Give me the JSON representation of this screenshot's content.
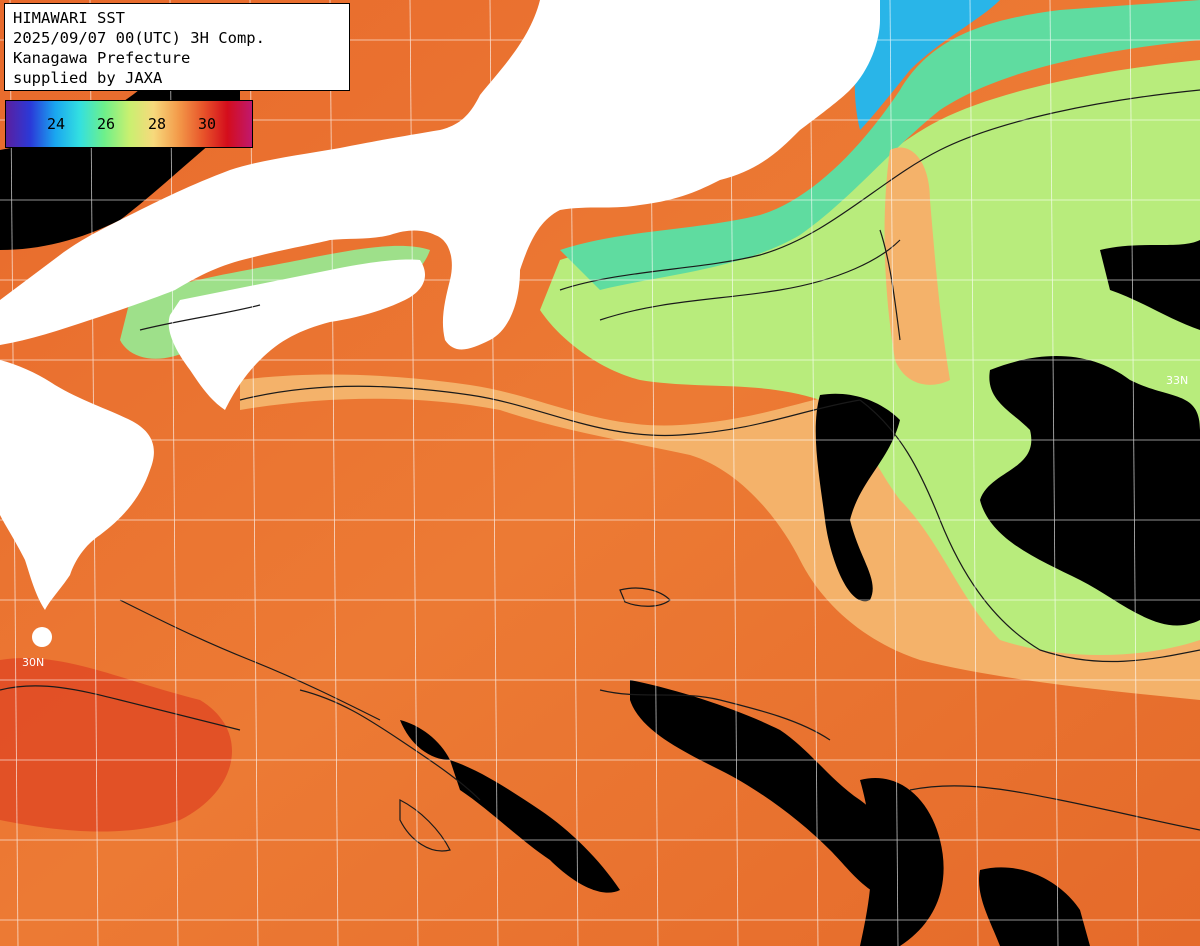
{
  "header": {
    "lines": [
      "HIMAWARI SST",
      "2025/09/07 00(UTC) 3H Comp.",
      "Kanagawa Prefecture",
      "supplied by JAXA"
    ]
  },
  "colorbar": {
    "ticks": [
      "24",
      "26",
      "28",
      "30"
    ],
    "stops": [
      "#5a1fa0",
      "#2a3ad8",
      "#1aa6f0",
      "#33e0e0",
      "#6ef08a",
      "#c8f070",
      "#f7d97c",
      "#f39b4a",
      "#e8552a",
      "#d40d1c",
      "#c0186e"
    ]
  },
  "lat_labels": {
    "north": "33N",
    "south": "30N"
  },
  "colors": {
    "land": "#ffffff",
    "cloud": "#000000",
    "grid": "#ffffff",
    "contour": "#1a1a1a",
    "warm": "#e8702c",
    "hot": "#e04a24",
    "mid": "#f4b26a",
    "cool": "#b8ec7c",
    "cold": "#5fdca0",
    "coldest": "#29b5e8"
  },
  "icons": {
    "map": "sst-map-icon"
  }
}
